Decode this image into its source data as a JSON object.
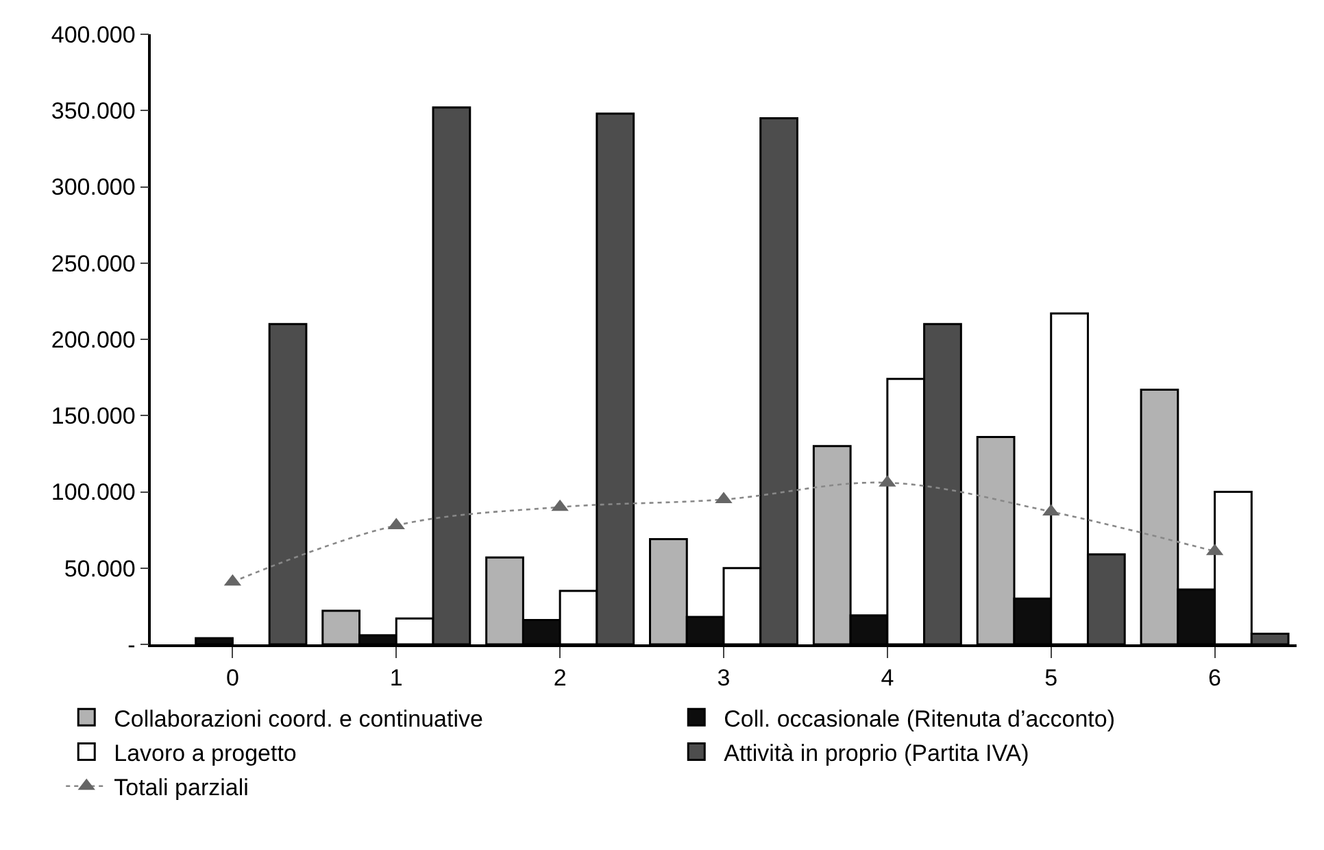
{
  "chart_data": {
    "type": "bar",
    "categories": [
      "0",
      "1",
      "2",
      "3",
      "4",
      "5",
      "6"
    ],
    "series": [
      {
        "name": "Collaborazioni coord. e continuative",
        "color": "#b2b2b2",
        "values": [
          null,
          22000,
          57000,
          69000,
          130000,
          136000,
          167000
        ]
      },
      {
        "name": "Coll. occasionale (Ritenuta d’acconto)",
        "color": "#0d0d0d",
        "values": [
          4000,
          6000,
          16000,
          18000,
          19000,
          30000,
          36000
        ]
      },
      {
        "name": "Lavoro a progetto",
        "color": "#ffffff",
        "values": [
          null,
          17000,
          35000,
          50000,
          174000,
          217000,
          100000
        ]
      },
      {
        "name": "Attività in proprio (Partita IVA)",
        "color": "#4d4d4d",
        "values": [
          210000,
          352000,
          348000,
          345000,
          210000,
          59000,
          7000
        ]
      },
      {
        "name": "Totali parziali",
        "type": "line",
        "color": "#666666",
        "marker": "triangle",
        "line_style": "dotted",
        "values": [
          41000,
          78000,
          90000,
          95000,
          106000,
          87000,
          61000
        ]
      }
    ],
    "ylim": [
      0,
      400000
    ],
    "yticks": [
      {
        "value": 0,
        "label": "-"
      },
      {
        "value": 50000,
        "label": "50.000"
      },
      {
        "value": 100000,
        "label": "100.000"
      },
      {
        "value": 150000,
        "label": "150.000"
      },
      {
        "value": 200000,
        "label": "200.000"
      },
      {
        "value": 250000,
        "label": "250.000"
      },
      {
        "value": 300000,
        "label": "300.000"
      },
      {
        "value": 350000,
        "label": "350.000"
      },
      {
        "value": 400000,
        "label": "400.000"
      }
    ],
    "legend": "bottom"
  }
}
